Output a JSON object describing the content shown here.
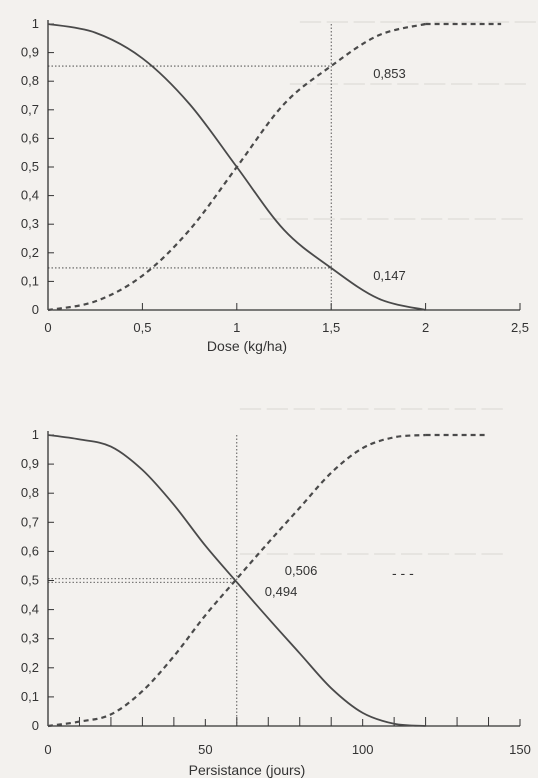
{
  "colors": {
    "ink": "#333333",
    "curve": "#4a4a4a",
    "background": "#f3f1ee"
  },
  "chart_data": [
    {
      "type": "line",
      "title": "",
      "xlabel": "Dose (kg/ha)",
      "ylabel": "",
      "xlim": [
        0,
        2.5
      ],
      "ylim": [
        0,
        1
      ],
      "x_tick_labels": [
        "0",
        "0,5",
        "1",
        "1,5",
        "2",
        "2,5"
      ],
      "y_tick_labels": [
        "0",
        "0,1",
        "0,2",
        "0,3",
        "0,4",
        "0,5",
        "0,6",
        "0,7",
        "0,8",
        "0,9",
        "1"
      ],
      "grid": false,
      "series": [
        {
          "style": "solid",
          "x": [
            0,
            0.25,
            0.5,
            0.75,
            1.0,
            1.25,
            1.5,
            1.75,
            2.0
          ],
          "y": [
            1.0,
            0.97,
            0.88,
            0.72,
            0.5,
            0.28,
            0.147,
            0.04,
            0.0
          ]
        },
        {
          "style": "dashed",
          "x": [
            0,
            0.25,
            0.5,
            0.75,
            1.0,
            1.25,
            1.5,
            1.75,
            2.0
          ],
          "y": [
            0.0,
            0.03,
            0.12,
            0.28,
            0.5,
            0.72,
            0.853,
            0.96,
            1.0
          ]
        }
      ],
      "annotations": [
        {
          "text": "0,853",
          "x": 1.5,
          "y": 0.853
        },
        {
          "text": "0,147",
          "x": 1.5,
          "y": 0.147
        }
      ]
    },
    {
      "type": "line",
      "title": "",
      "xlabel": "Persistance (jours)",
      "ylabel": "",
      "xlim": [
        0,
        150
      ],
      "ylim": [
        0,
        1
      ],
      "x_tick_labels": [
        "0",
        "50",
        "100",
        "150"
      ],
      "y_tick_labels": [
        "0",
        "0,1",
        "0,2",
        "0,3",
        "0,4",
        "0,5",
        "0,6",
        "0,7",
        "0,8",
        "0,9",
        "1"
      ],
      "grid": false,
      "series": [
        {
          "style": "solid",
          "x": [
            0,
            10,
            20,
            30,
            40,
            50,
            60,
            70,
            80,
            90,
            100,
            110,
            120
          ],
          "y": [
            1.0,
            0.985,
            0.96,
            0.88,
            0.76,
            0.62,
            0.494,
            0.37,
            0.25,
            0.13,
            0.045,
            0.008,
            0.0
          ]
        },
        {
          "style": "dashed",
          "x": [
            0,
            10,
            20,
            30,
            40,
            50,
            60,
            70,
            80,
            90,
            100,
            110,
            120
          ],
          "y": [
            0.0,
            0.015,
            0.04,
            0.12,
            0.24,
            0.38,
            0.506,
            0.63,
            0.75,
            0.87,
            0.955,
            0.992,
            1.0
          ]
        }
      ],
      "annotations": [
        {
          "text": "0,506",
          "x": 60,
          "y": 0.506
        },
        {
          "text": "0,494",
          "x": 60,
          "y": 0.494
        }
      ],
      "legend_mark": "- - -"
    }
  ]
}
